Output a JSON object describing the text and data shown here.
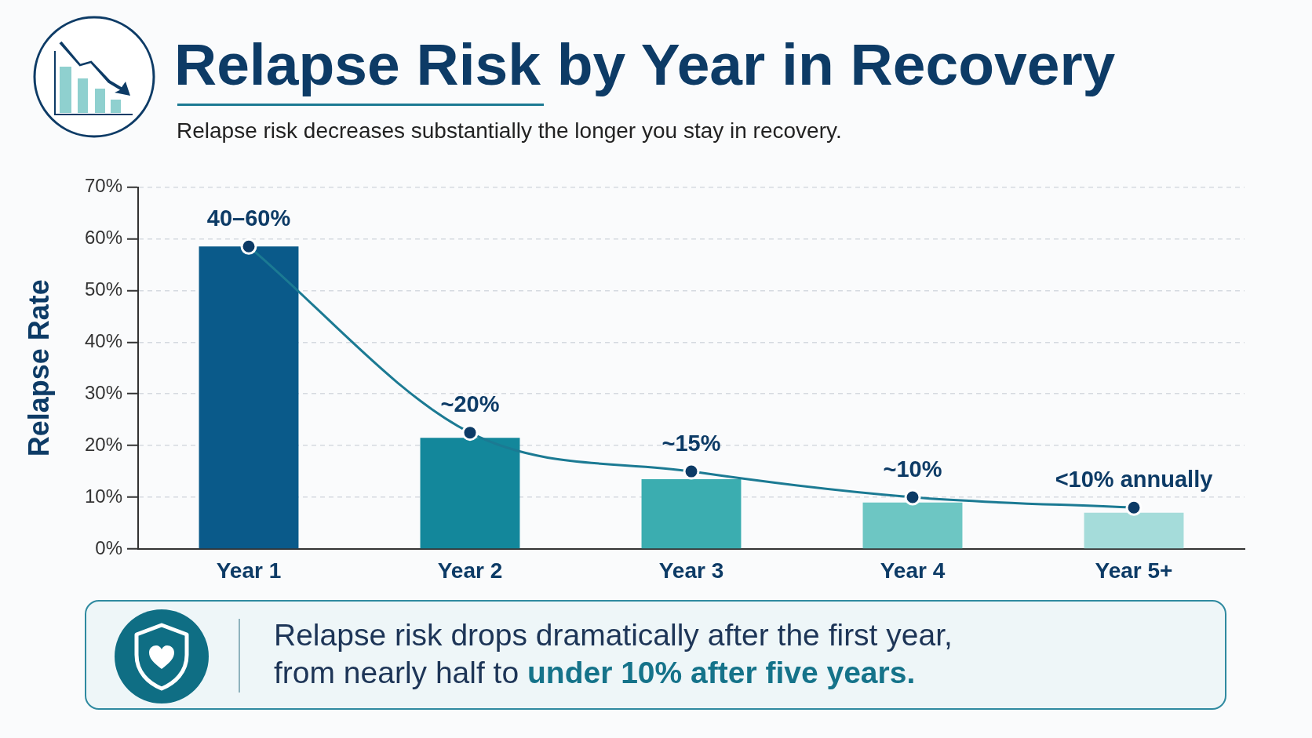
{
  "chart_data": {
    "type": "bar",
    "title": "Relapse Risk by Year in Recovery",
    "subtitle": "Relapse risk decreases substantially the longer you stay in recovery.",
    "ylabel": "Relapse Rate",
    "categories": [
      "Year 1",
      "Year 2",
      "Year 3",
      "Year 4",
      "Year 5+"
    ],
    "series": [
      {
        "colors": [
          "#0a5a8a",
          "#13879b",
          "#3badb0",
          "#6dc6c3",
          "#a5dcda"
        ],
        "values": [
          58.5,
          21.5,
          13.5,
          9,
          7
        ]
      },
      {
        "type": "line",
        "color": "#1b7a93",
        "marker": "circle",
        "values": [
          58.5,
          22.5,
          15,
          10,
          8
        ]
      }
    ],
    "ylim": [
      0,
      70
    ],
    "yticks": [
      {
        "value": 0,
        "label": "0%"
      },
      {
        "value": 10,
        "label": "10%"
      },
      {
        "value": 20,
        "label": "20%"
      },
      {
        "value": 30,
        "label": "30%"
      },
      {
        "value": 40,
        "label": "40%"
      },
      {
        "value": 50,
        "label": "50%"
      },
      {
        "value": 60,
        "label": "60%"
      },
      {
        "value": 70,
        "label": "70%"
      }
    ],
    "grid": "y",
    "annotations": [
      {
        "text": "40–60%",
        "x": "Year 1",
        "y": 58.5
      },
      {
        "text": "~20%",
        "x": "Year 2",
        "y": 22.5
      },
      {
        "text": "~15%",
        "x": "Year 3",
        "y": 15
      },
      {
        "text": "~10%",
        "x": "Year 4",
        "y": 10
      },
      {
        "text": "<10% annually",
        "x": "Year 5+",
        "y": 8
      },
      "Relapse risk drops dramatically after the first year,",
      "from nearly half to",
      "under 10% after five years."
    ]
  }
}
